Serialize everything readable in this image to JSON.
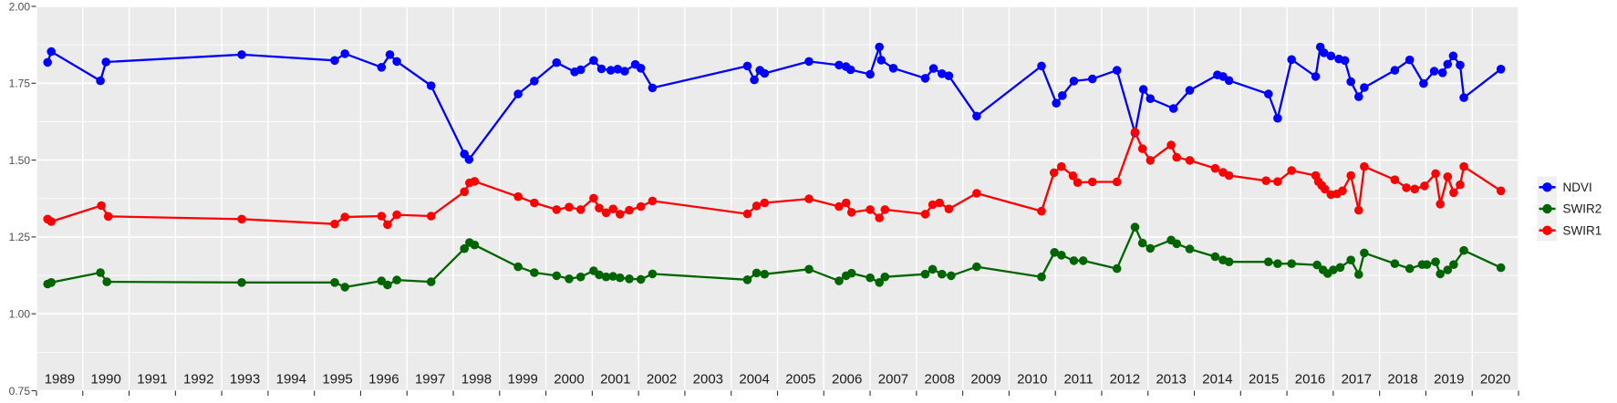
{
  "chart_data": {
    "type": "line",
    "title": "",
    "xlabel": "",
    "ylabel": "",
    "x_domain": [
      1989,
      2021
    ],
    "ylim": [
      0.75,
      2.0
    ],
    "y_ticks": [
      {
        "value": 2.0,
        "label": "2.00"
      },
      {
        "value": 1.75,
        "label": "1.75"
      },
      {
        "value": 1.5,
        "label": "1.50"
      },
      {
        "value": 1.25,
        "label": "1.25"
      },
      {
        "value": 1.0,
        "label": "1.00"
      },
      {
        "value": 0.75,
        "label": "0.75"
      }
    ],
    "y_minor": [
      1.875,
      1.625,
      1.375,
      1.125,
      0.875
    ],
    "x_tick_labels": [
      "1989",
      "1990",
      "1991",
      "1992",
      "1993",
      "1994",
      "1995",
      "1996",
      "1997",
      "1998",
      "1999",
      "2000",
      "2001",
      "2002",
      "2003",
      "2004",
      "2005",
      "2006",
      "2007",
      "2008",
      "2009",
      "2010",
      "2011",
      "2012",
      "2013",
      "2014",
      "2015",
      "2016",
      "2017",
      "2018",
      "2019",
      "2020"
    ],
    "grid": {
      "panel_bg": "#EBEBEB",
      "grid_color": "#FFFFFF",
      "legend_key_bg": "#F0F0F0",
      "axis_text_color": "#4d4d4d",
      "x_text_color": "#1a1a1a",
      "tick_color": "#333333"
    },
    "legend": {
      "position": "right",
      "entries": [
        "NDVI",
        "SWIR2",
        "SWIR1"
      ]
    },
    "series": [
      {
        "name": "NDVI",
        "color": "#0000FF",
        "points": [
          [
            1989.24,
            1.818
          ],
          [
            1989.32,
            1.853
          ],
          [
            1990.38,
            1.758
          ],
          [
            1990.5,
            1.819
          ],
          [
            1993.43,
            1.843
          ],
          [
            1995.44,
            1.824
          ],
          [
            1995.66,
            1.846
          ],
          [
            1996.45,
            1.802
          ],
          [
            1996.63,
            1.843
          ],
          [
            1996.78,
            1.821
          ],
          [
            1997.52,
            1.742
          ],
          [
            1998.24,
            1.52
          ],
          [
            1998.34,
            1.502
          ],
          [
            1999.4,
            1.715
          ],
          [
            1999.75,
            1.757
          ],
          [
            2000.23,
            1.817
          ],
          [
            2000.62,
            1.787
          ],
          [
            2000.75,
            1.794
          ],
          [
            2001.03,
            1.824
          ],
          [
            2001.2,
            1.797
          ],
          [
            2001.4,
            1.792
          ],
          [
            2001.55,
            1.796
          ],
          [
            2001.7,
            1.789
          ],
          [
            2001.93,
            1.811
          ],
          [
            2002.05,
            1.799
          ],
          [
            2002.3,
            1.735
          ],
          [
            2004.35,
            1.806
          ],
          [
            2004.5,
            1.761
          ],
          [
            2004.62,
            1.792
          ],
          [
            2004.72,
            1.782
          ],
          [
            2005.68,
            1.821
          ],
          [
            2006.33,
            1.809
          ],
          [
            2006.48,
            1.804
          ],
          [
            2006.58,
            1.794
          ],
          [
            2007.0,
            1.779
          ],
          [
            2007.2,
            1.868
          ],
          [
            2007.24,
            1.825
          ],
          [
            2007.5,
            1.799
          ],
          [
            2008.19,
            1.766
          ],
          [
            2008.37,
            1.798
          ],
          [
            2008.55,
            1.781
          ],
          [
            2008.7,
            1.774
          ],
          [
            2009.3,
            1.643
          ],
          [
            2010.7,
            1.806
          ],
          [
            2011.02,
            1.685
          ],
          [
            2011.15,
            1.71
          ],
          [
            2011.4,
            1.757
          ],
          [
            2011.8,
            1.764
          ],
          [
            2012.33,
            1.792
          ],
          [
            2012.72,
            1.588
          ],
          [
            2012.9,
            1.73
          ],
          [
            2013.05,
            1.7
          ],
          [
            2013.55,
            1.668
          ],
          [
            2013.9,
            1.727
          ],
          [
            2014.5,
            1.777
          ],
          [
            2014.62,
            1.772
          ],
          [
            2014.75,
            1.759
          ],
          [
            2015.6,
            1.715
          ],
          [
            2015.8,
            1.636
          ],
          [
            2016.1,
            1.827
          ],
          [
            2016.62,
            1.772
          ],
          [
            2016.72,
            1.868
          ],
          [
            2016.8,
            1.849
          ],
          [
            2016.95,
            1.839
          ],
          [
            2017.12,
            1.829
          ],
          [
            2017.25,
            1.824
          ],
          [
            2017.38,
            1.755
          ],
          [
            2017.55,
            1.706
          ],
          [
            2017.67,
            1.736
          ],
          [
            2018.33,
            1.792
          ],
          [
            2018.65,
            1.826
          ],
          [
            2018.95,
            1.749
          ],
          [
            2019.18,
            1.789
          ],
          [
            2019.36,
            1.784
          ],
          [
            2019.47,
            1.812
          ],
          [
            2019.59,
            1.839
          ],
          [
            2019.74,
            1.809
          ],
          [
            2019.82,
            1.703
          ],
          [
            2020.62,
            1.796
          ]
        ]
      },
      {
        "name": "SWIR2",
        "color": "#006400",
        "points": [
          [
            1989.24,
            1.097
          ],
          [
            1989.32,
            1.102
          ],
          [
            1990.38,
            1.134
          ],
          [
            1990.52,
            1.104
          ],
          [
            1993.43,
            1.102
          ],
          [
            1995.44,
            1.102
          ],
          [
            1995.66,
            1.087
          ],
          [
            1996.45,
            1.107
          ],
          [
            1996.58,
            1.094
          ],
          [
            1996.78,
            1.11
          ],
          [
            1997.52,
            1.104
          ],
          [
            1998.24,
            1.212
          ],
          [
            1998.35,
            1.232
          ],
          [
            1998.46,
            1.224
          ],
          [
            1999.4,
            1.153
          ],
          [
            1999.75,
            1.134
          ],
          [
            2000.23,
            1.124
          ],
          [
            2000.5,
            1.114
          ],
          [
            2000.75,
            1.12
          ],
          [
            2001.03,
            1.14
          ],
          [
            2001.15,
            1.127
          ],
          [
            2001.3,
            1.12
          ],
          [
            2001.45,
            1.122
          ],
          [
            2001.6,
            1.117
          ],
          [
            2001.8,
            1.114
          ],
          [
            2002.05,
            1.112
          ],
          [
            2002.3,
            1.13
          ],
          [
            2004.35,
            1.111
          ],
          [
            2004.55,
            1.133
          ],
          [
            2004.72,
            1.129
          ],
          [
            2005.68,
            1.145
          ],
          [
            2006.33,
            1.107
          ],
          [
            2006.48,
            1.124
          ],
          [
            2006.6,
            1.132
          ],
          [
            2007.0,
            1.117
          ],
          [
            2007.2,
            1.102
          ],
          [
            2007.32,
            1.12
          ],
          [
            2008.19,
            1.129
          ],
          [
            2008.35,
            1.145
          ],
          [
            2008.55,
            1.129
          ],
          [
            2008.75,
            1.124
          ],
          [
            2009.3,
            1.153
          ],
          [
            2010.7,
            1.12
          ],
          [
            2010.98,
            1.2
          ],
          [
            2011.13,
            1.191
          ],
          [
            2011.4,
            1.173
          ],
          [
            2011.6,
            1.173
          ],
          [
            2012.33,
            1.147
          ],
          [
            2012.72,
            1.282
          ],
          [
            2012.88,
            1.23
          ],
          [
            2013.05,
            1.213
          ],
          [
            2013.5,
            1.24
          ],
          [
            2013.62,
            1.228
          ],
          [
            2013.9,
            1.211
          ],
          [
            2014.45,
            1.186
          ],
          [
            2014.62,
            1.175
          ],
          [
            2014.75,
            1.169
          ],
          [
            2015.6,
            1.169
          ],
          [
            2015.8,
            1.163
          ],
          [
            2016.1,
            1.163
          ],
          [
            2016.65,
            1.159
          ],
          [
            2016.78,
            1.143
          ],
          [
            2016.88,
            1.131
          ],
          [
            2017.0,
            1.143
          ],
          [
            2017.15,
            1.151
          ],
          [
            2017.38,
            1.175
          ],
          [
            2017.55,
            1.128
          ],
          [
            2017.67,
            1.198
          ],
          [
            2018.33,
            1.163
          ],
          [
            2018.65,
            1.147
          ],
          [
            2018.92,
            1.16
          ],
          [
            2019.02,
            1.16
          ],
          [
            2019.21,
            1.169
          ],
          [
            2019.31,
            1.13
          ],
          [
            2019.47,
            1.143
          ],
          [
            2019.6,
            1.16
          ],
          [
            2019.82,
            1.206
          ],
          [
            2020.62,
            1.15
          ]
        ]
      },
      {
        "name": "SWIR1",
        "color": "#FF0000",
        "points": [
          [
            1989.24,
            1.308
          ],
          [
            1989.32,
            1.3
          ],
          [
            1990.4,
            1.352
          ],
          [
            1990.55,
            1.317
          ],
          [
            1993.43,
            1.308
          ],
          [
            1995.44,
            1.292
          ],
          [
            1995.66,
            1.315
          ],
          [
            1996.45,
            1.318
          ],
          [
            1996.58,
            1.29
          ],
          [
            1996.78,
            1.322
          ],
          [
            1997.52,
            1.318
          ],
          [
            1998.24,
            1.397
          ],
          [
            1998.35,
            1.426
          ],
          [
            1998.46,
            1.431
          ],
          [
            1999.4,
            1.381
          ],
          [
            1999.75,
            1.361
          ],
          [
            2000.23,
            1.339
          ],
          [
            2000.5,
            1.347
          ],
          [
            2000.75,
            1.339
          ],
          [
            2001.03,
            1.376
          ],
          [
            2001.15,
            1.344
          ],
          [
            2001.3,
            1.329
          ],
          [
            2001.45,
            1.341
          ],
          [
            2001.6,
            1.324
          ],
          [
            2001.8,
            1.337
          ],
          [
            2002.05,
            1.349
          ],
          [
            2002.3,
            1.367
          ],
          [
            2004.35,
            1.325
          ],
          [
            2004.55,
            1.351
          ],
          [
            2004.72,
            1.361
          ],
          [
            2005.68,
            1.374
          ],
          [
            2006.33,
            1.349
          ],
          [
            2006.48,
            1.361
          ],
          [
            2006.6,
            1.33
          ],
          [
            2007.0,
            1.339
          ],
          [
            2007.2,
            1.312
          ],
          [
            2007.32,
            1.339
          ],
          [
            2008.19,
            1.324
          ],
          [
            2008.35,
            1.355
          ],
          [
            2008.5,
            1.361
          ],
          [
            2008.7,
            1.341
          ],
          [
            2009.3,
            1.392
          ],
          [
            2010.7,
            1.334
          ],
          [
            2010.97,
            1.459
          ],
          [
            2011.13,
            1.479
          ],
          [
            2011.38,
            1.449
          ],
          [
            2011.48,
            1.427
          ],
          [
            2011.8,
            1.429
          ],
          [
            2012.33,
            1.429
          ],
          [
            2012.72,
            1.591
          ],
          [
            2012.88,
            1.537
          ],
          [
            2013.05,
            1.499
          ],
          [
            2013.5,
            1.549
          ],
          [
            2013.62,
            1.509
          ],
          [
            2013.9,
            1.499
          ],
          [
            2014.45,
            1.473
          ],
          [
            2014.62,
            1.46
          ],
          [
            2014.75,
            1.45
          ],
          [
            2015.55,
            1.433
          ],
          [
            2015.8,
            1.43
          ],
          [
            2016.1,
            1.466
          ],
          [
            2016.62,
            1.45
          ],
          [
            2016.68,
            1.43
          ],
          [
            2016.75,
            1.418
          ],
          [
            2016.82,
            1.406
          ],
          [
            2016.95,
            1.388
          ],
          [
            2017.08,
            1.39
          ],
          [
            2017.2,
            1.4
          ],
          [
            2017.38,
            1.45
          ],
          [
            2017.55,
            1.337
          ],
          [
            2017.67,
            1.479
          ],
          [
            2018.33,
            1.436
          ],
          [
            2018.58,
            1.41
          ],
          [
            2018.76,
            1.406
          ],
          [
            2018.97,
            1.416
          ],
          [
            2019.21,
            1.456
          ],
          [
            2019.31,
            1.357
          ],
          [
            2019.47,
            1.446
          ],
          [
            2019.6,
            1.394
          ],
          [
            2019.74,
            1.42
          ],
          [
            2019.82,
            1.479
          ],
          [
            2020.62,
            1.4
          ]
        ]
      }
    ]
  }
}
